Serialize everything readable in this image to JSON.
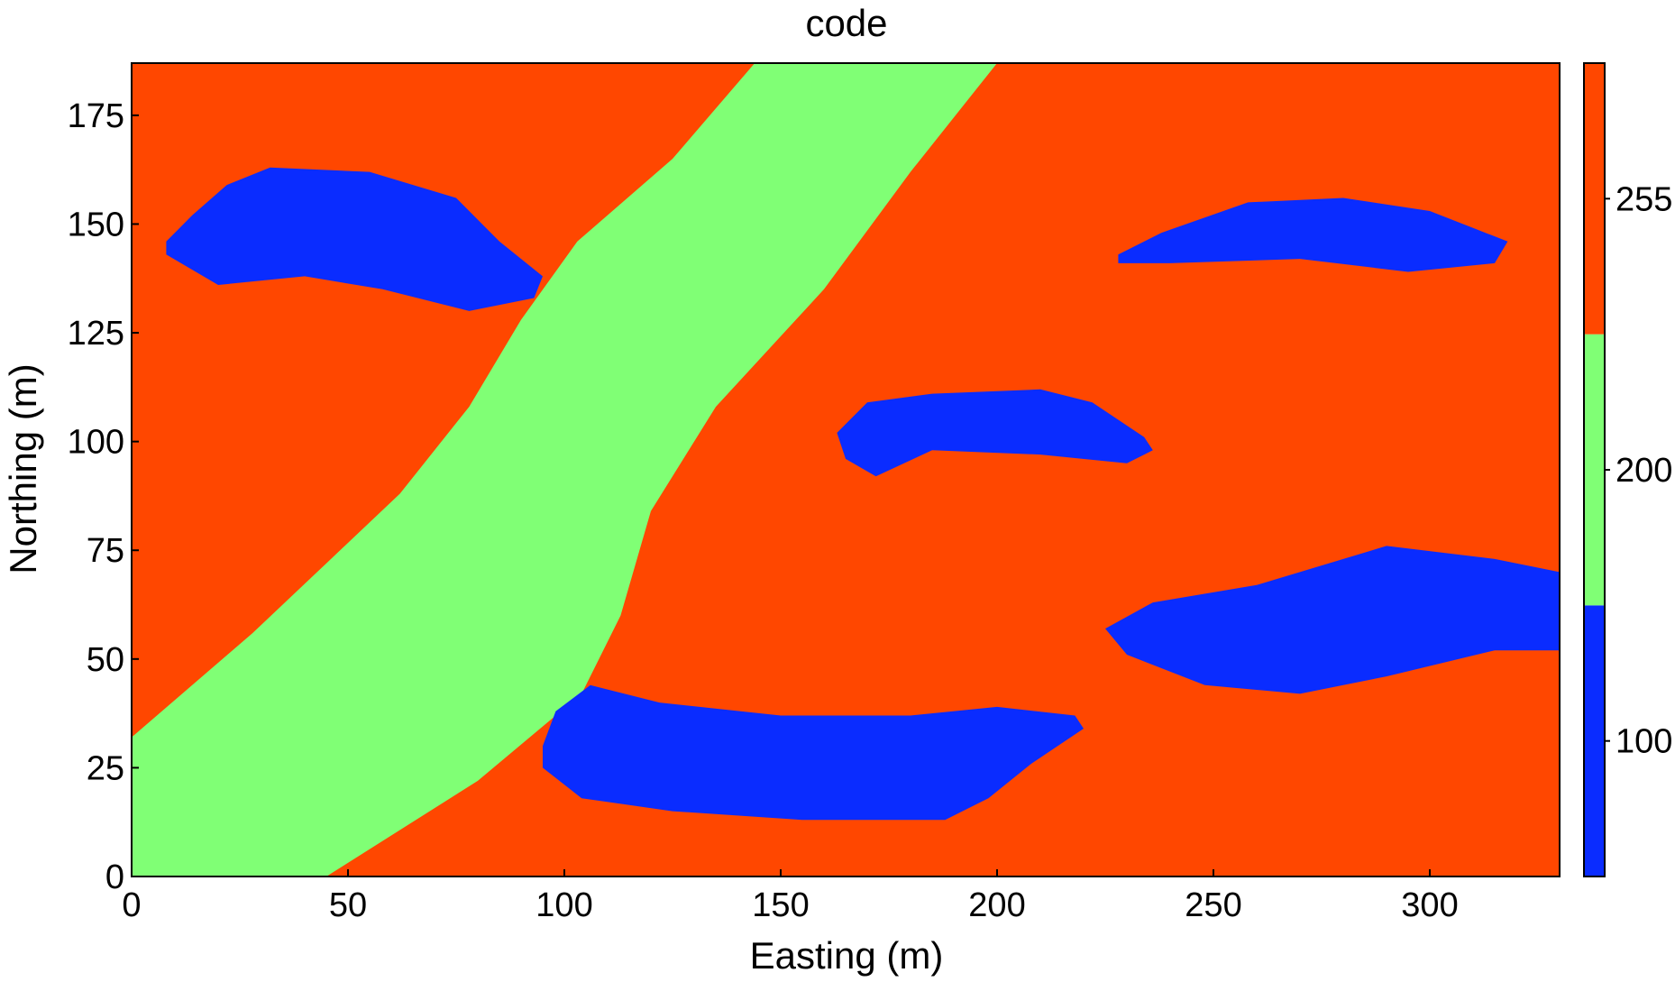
{
  "chart_data": {
    "type": "heatmap",
    "title": "code",
    "xlabel": "Easting (m)",
    "ylabel": "Northing (m)",
    "xlim": [
      0,
      330
    ],
    "ylim": [
      0,
      187
    ],
    "xticks": [
      0,
      50,
      100,
      150,
      200,
      250,
      300
    ],
    "yticks": [
      0,
      25,
      50,
      75,
      100,
      125,
      150,
      175
    ],
    "grid": false,
    "colorbar": {
      "ticks": [
        {
          "label": "100",
          "color": "#0a2cff"
        },
        {
          "label": "200",
          "color": "#80ff75"
        },
        {
          "label": "255",
          "color": "#ff4700"
        }
      ]
    },
    "categories": [
      {
        "code": 255,
        "color": "#ff4700",
        "role": "background"
      },
      {
        "code": 200,
        "color": "#80ff75"
      },
      {
        "code": 100,
        "color": "#0a2cff"
      }
    ],
    "regions": [
      {
        "code": 200,
        "polygon": [
          [
            0,
            32
          ],
          [
            28,
            56
          ],
          [
            45,
            72
          ],
          [
            62,
            88
          ],
          [
            78,
            108
          ],
          [
            90,
            128
          ],
          [
            103,
            146
          ],
          [
            125,
            165
          ],
          [
            144,
            187
          ],
          [
            200,
            187
          ],
          [
            180,
            162
          ],
          [
            160,
            135
          ],
          [
            135,
            108
          ],
          [
            120,
            84
          ],
          [
            113,
            60
          ],
          [
            104,
            42
          ],
          [
            80,
            22
          ],
          [
            45,
            0
          ],
          [
            0,
            0
          ]
        ]
      },
      {
        "code": 100,
        "polygon": [
          [
            8,
            146
          ],
          [
            14,
            152
          ],
          [
            22,
            159
          ],
          [
            32,
            163
          ],
          [
            55,
            162
          ],
          [
            75,
            156
          ],
          [
            85,
            146
          ],
          [
            95,
            138
          ],
          [
            93,
            133
          ],
          [
            78,
            130
          ],
          [
            58,
            135
          ],
          [
            40,
            138
          ],
          [
            20,
            136
          ],
          [
            8,
            143
          ]
        ]
      },
      {
        "code": 100,
        "polygon": [
          [
            95,
            30
          ],
          [
            98,
            38
          ],
          [
            106,
            44
          ],
          [
            122,
            40
          ],
          [
            150,
            37
          ],
          [
            180,
            37
          ],
          [
            200,
            39
          ],
          [
            218,
            37
          ],
          [
            220,
            34
          ],
          [
            208,
            26
          ],
          [
            198,
            18
          ],
          [
            188,
            13
          ],
          [
            155,
            13
          ],
          [
            125,
            15
          ],
          [
            104,
            18
          ],
          [
            95,
            25
          ]
        ]
      },
      {
        "code": 100,
        "polygon": [
          [
            163,
            102
          ],
          [
            170,
            109
          ],
          [
            185,
            111
          ],
          [
            210,
            112
          ],
          [
            222,
            109
          ],
          [
            234,
            101
          ],
          [
            236,
            98
          ],
          [
            230,
            95
          ],
          [
            210,
            97
          ],
          [
            185,
            98
          ],
          [
            172,
            92
          ],
          [
            165,
            96
          ]
        ]
      },
      {
        "code": 100,
        "polygon": [
          [
            228,
            143
          ],
          [
            238,
            148
          ],
          [
            258,
            155
          ],
          [
            280,
            156
          ],
          [
            300,
            153
          ],
          [
            318,
            146
          ],
          [
            315,
            141
          ],
          [
            295,
            139
          ],
          [
            270,
            142
          ],
          [
            240,
            141
          ],
          [
            228,
            141
          ]
        ]
      },
      {
        "code": 100,
        "polygon": [
          [
            225,
            57
          ],
          [
            236,
            63
          ],
          [
            260,
            67
          ],
          [
            290,
            76
          ],
          [
            315,
            73
          ],
          [
            330,
            70
          ],
          [
            330,
            52
          ],
          [
            315,
            52
          ],
          [
            290,
            46
          ],
          [
            270,
            42
          ],
          [
            248,
            44
          ],
          [
            230,
            51
          ]
        ]
      }
    ]
  }
}
